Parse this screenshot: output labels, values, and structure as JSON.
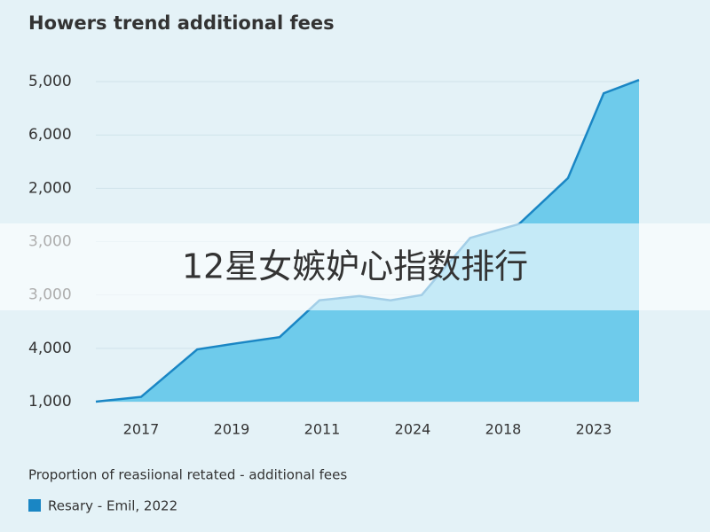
{
  "chart_data": {
    "type": "area",
    "title": "Howers trend additional fees",
    "subtitle": "Proportion of reasiional retated - additional fees",
    "banner": "12星女嫉妒心指数排行",
    "x": [
      0,
      1,
      2.24,
      3.08,
      4.06,
      4.94,
      5.82,
      6.51,
      7.2,
      8.27,
      9.35,
      10.43,
      11.22,
      12
    ],
    "xlim": [
      0,
      12
    ],
    "xticks": [
      {
        "value": 1,
        "label": "2017"
      },
      {
        "value": 3,
        "label": "2019"
      },
      {
        "value": 5,
        "label": "2011"
      },
      {
        "value": 7,
        "label": "2024"
      },
      {
        "value": 9,
        "label": "2018"
      },
      {
        "value": 11,
        "label": "2023"
      }
    ],
    "ylim": [
      0,
      6.2
    ],
    "yticks": [
      {
        "value": 6,
        "label": "5,000"
      },
      {
        "value": 5,
        "label": "6,000"
      },
      {
        "value": 4,
        "label": "2,000"
      },
      {
        "value": 3,
        "label": "3,000"
      },
      {
        "value": 2,
        "label": "3,000"
      },
      {
        "value": 1,
        "label": "4,000"
      },
      {
        "value": 0,
        "label": "1,000"
      }
    ],
    "series": [
      {
        "name": "Resary - Emil, 2022",
        "color": "#1a86c4",
        "fill": "#6ecbeb",
        "values": [
          0,
          0.09,
          0.98,
          1.09,
          1.21,
          1.9,
          1.98,
          1.9,
          2.0,
          3.07,
          3.33,
          4.19,
          5.78,
          6.03
        ]
      }
    ]
  }
}
